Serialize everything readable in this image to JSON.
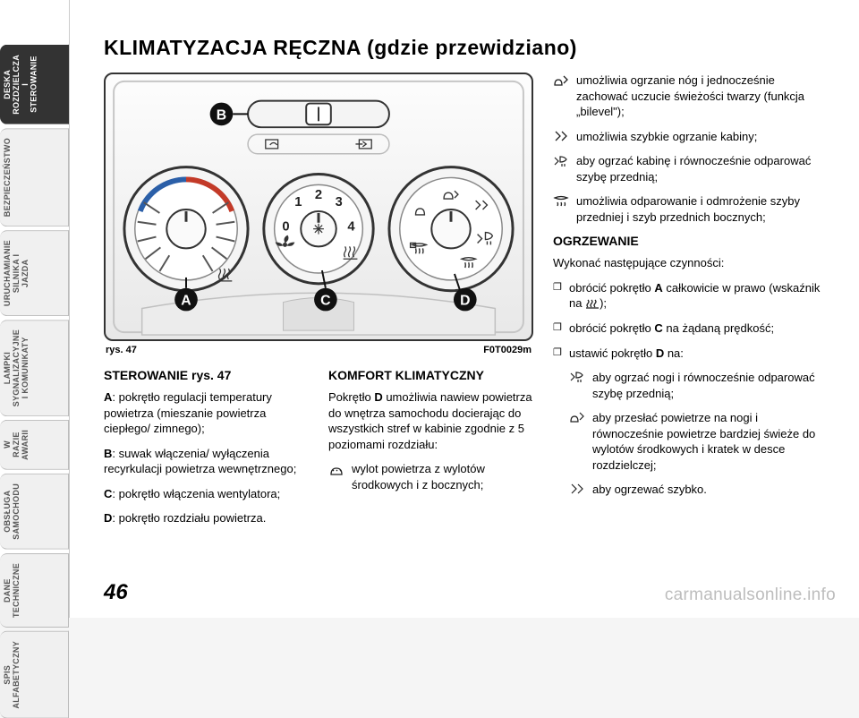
{
  "sidebar": {
    "tabs": [
      "DESKA\nROZDZIELCZA\nI STEROWANIE",
      "BEZPIECZEŃSTWO",
      "URUCHAMIANIE\nSILNIKA I JAZDA",
      "LAMPKI\nSYGNALIZACYJNE\nI KOMUNIKATY",
      "W RAZIE AWARII",
      "OBSŁUGA\nSAMOCHODU",
      "DANE\nTECHNICZNE",
      "SPIS\nALFABETYCZNY"
    ],
    "active_index": 0
  },
  "title": "KLIMATYZACJA RĘCZNA (gdzie przewidziano)",
  "figure": {
    "caption_left": "rys. 47",
    "caption_right": "F0T0029m",
    "labels": [
      "A",
      "B",
      "C",
      "D"
    ],
    "fan_speeds": [
      "0",
      "1",
      "2",
      "3",
      "4"
    ],
    "colors": {
      "stroke": "#222222",
      "light": "#f2f2f2",
      "dark_fill": "#dcdcdc",
      "blue": "#2b5fa8",
      "red": "#c33a28",
      "bg_top": "#fdfdfd",
      "bg_bot": "#e6e6e6"
    }
  },
  "colA": {
    "heading": "STEROWANIE rys. 47",
    "defs": [
      {
        "letter": "A",
        "text": "pokrętło regulacji temperatury powietrza (mieszanie powietrza ciepłego/ zimnego);"
      },
      {
        "letter": "B",
        "text": "suwak włączenia/ wyłączenia recyrkulacji powietrza wewnętrznego;"
      },
      {
        "letter": "C",
        "text": "pokrętło włączenia wentylatora;"
      },
      {
        "letter": "D",
        "text": "pokrętło rozdziału powietrza."
      }
    ]
  },
  "colB": {
    "heading": "KOMFORT KLIMATYCZNY",
    "lead": "Pokrętło D umożliwia nawiew powietrza do wnętrza samochodu docierając do wszystkich stref w kabinie zgodnie z 5 poziomami rozdziału:",
    "item": "wylot powietrza z wylotów środkowych i z bocznych;"
  },
  "right": {
    "iconlines": [
      "umożliwia ogrzanie nóg i jednocześnie zachować uczucie świeżości twarzy (funkcja „bilevel\");",
      "umożliwia szybkie ogrzanie kabiny;",
      "aby ogrzać kabinę i równocześnie odparować szybę przednią;",
      "umożliwia odparowanie i odmrożenie szyby przedniej i szyb przednich bocznych;"
    ],
    "heading": "OGRZEWANIE",
    "lead": "Wykonać następujące czynności:",
    "bullets": [
      {
        "html": "obrócić pokrętło <b>A</b> całkowicie w prawo (wskaźnik na <svg class='heater' width='16' height='11' viewBox='0 0 16 11'><path d='M3 1 Q5 3 3 5 Q1 7 3 9 M7 1 Q9 3 7 5 Q5 7 7 9 M11 1 Q13 3 11 5 Q9 7 11 9' stroke='#222' stroke-width='1.3' fill='none'/><line x1='1' y1='10' x2='15' y2='10' stroke='#222' stroke-width='1.3'/></svg>);"
      },
      {
        "html": "obrócić pokrętło <b>C</b> na żądaną prędkość;"
      },
      {
        "html": "ustawić pokrętło <b>D</b> na:"
      }
    ],
    "sublist": [
      "aby ogrzać nogi i równocześnie odparować szybę przednią;",
      "aby przesłać powietrze na nogi i równocześnie powietrze bardziej świeże do wylotów środkowych i kratek w desce rozdzielczej;",
      "aby ogrzewać szybko."
    ]
  },
  "page_number": "46",
  "watermark": "carmanualsonline.info",
  "icons": {
    "face": "<path d='M3 16 Q3 8 9 8 Q15 8 15 16 Z M5 12 l1 -1 M9 12 l1 -1 M13 12 l1 -1' stroke='#222' stroke-width='1.2' fill='none'/>",
    "face_feet": "<path d='M2 14 Q2 7 7 7 Q12 7 12 14 Z M14 3 l3 3 l-3 3' stroke='#222' stroke-width='1.2' fill='none'/>",
    "feet": "<path d='M3 3 l5 5 l-5 5 M11 3 l5 5 l-5 5' stroke='#222' stroke-width='1.2' fill='none'/>",
    "feet_defrost": "<path d='M2 4 l4 4 l-4 4 M8 3 Q13 3 15 6 Q13 9 8 9 Z M10 11 l0 3 M13 11 l0 3' stroke='#222' stroke-width='1.1' fill='none'/>",
    "defrost": "<path d='M2 4 Q9 1 16 4 Q9 7 2 4 Z M5 9 Q6 11 5 13 M9 9 Q10 11 9 13 M13 9 Q14 11 13 13' stroke='#222' stroke-width='1.2' fill='none'/>"
  }
}
